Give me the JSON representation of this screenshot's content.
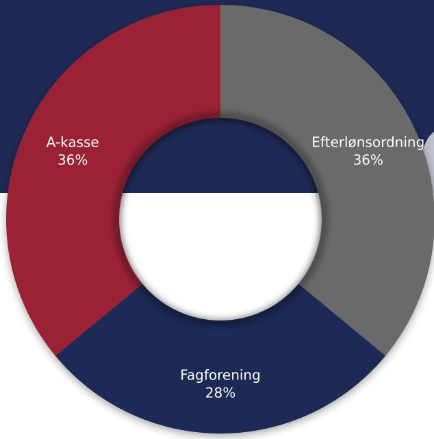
{
  "chart_data": {
    "type": "pie",
    "variant": "donut",
    "title": "",
    "slices": [
      {
        "label": "Efterlønsordning",
        "value_label": "36%",
        "value": 36,
        "color": "#6b6b6b"
      },
      {
        "label": "Fagforening",
        "value_label": "28%",
        "value": 28,
        "color": "#1e2a55"
      },
      {
        "label": "A-kasse",
        "value_label": "36%",
        "value": 36,
        "color": "#9b2335"
      }
    ],
    "start": "top",
    "direction": "clockwise",
    "legend": "none"
  },
  "colors": {
    "background_band": "#1e2a55",
    "background": "#ffffff"
  }
}
